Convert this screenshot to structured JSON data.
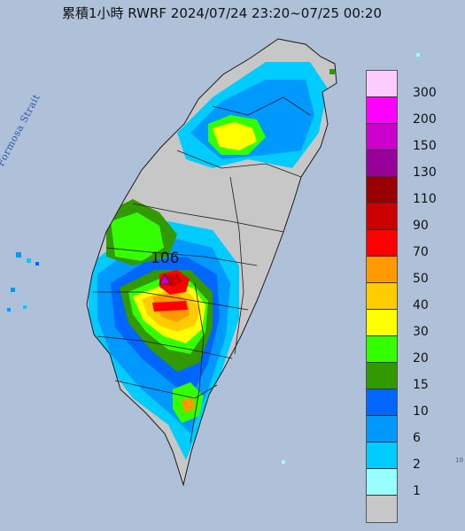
{
  "title": "累積1小時 RWRF 2024/07/24 23:20~07/25 00:20",
  "strait_label": "Formosa Strait",
  "max_label": "106",
  "edge_label": "10",
  "legend": [
    {
      "label": "300",
      "color": "#ffccff"
    },
    {
      "label": "200",
      "color": "#ff00ff"
    },
    {
      "label": "150",
      "color": "#cc00cc"
    },
    {
      "label": "130",
      "color": "#990099"
    },
    {
      "label": "110",
      "color": "#990000"
    },
    {
      "label": "90",
      "color": "#cc0000"
    },
    {
      "label": "70",
      "color": "#ff0000"
    },
    {
      "label": "50",
      "color": "#ff9900"
    },
    {
      "label": "40",
      "color": "#ffcc00"
    },
    {
      "label": "30",
      "color": "#ffff00"
    },
    {
      "label": "20",
      "color": "#33ff00"
    },
    {
      "label": "15",
      "color": "#339900"
    },
    {
      "label": "10",
      "color": "#0066ff"
    },
    {
      "label": "6",
      "color": "#0099ff"
    },
    {
      "label": "2",
      "color": "#00ccff"
    },
    {
      "label": "1",
      "color": "#99ffff"
    },
    {
      "label": "",
      "color": "#c7c7c7"
    }
  ],
  "colors": {
    "sea": "#a9bdd6",
    "land_dry": "#c7c7c7",
    "county_line": "#1a1a1a",
    "max_marker": "#cc00cc"
  }
}
